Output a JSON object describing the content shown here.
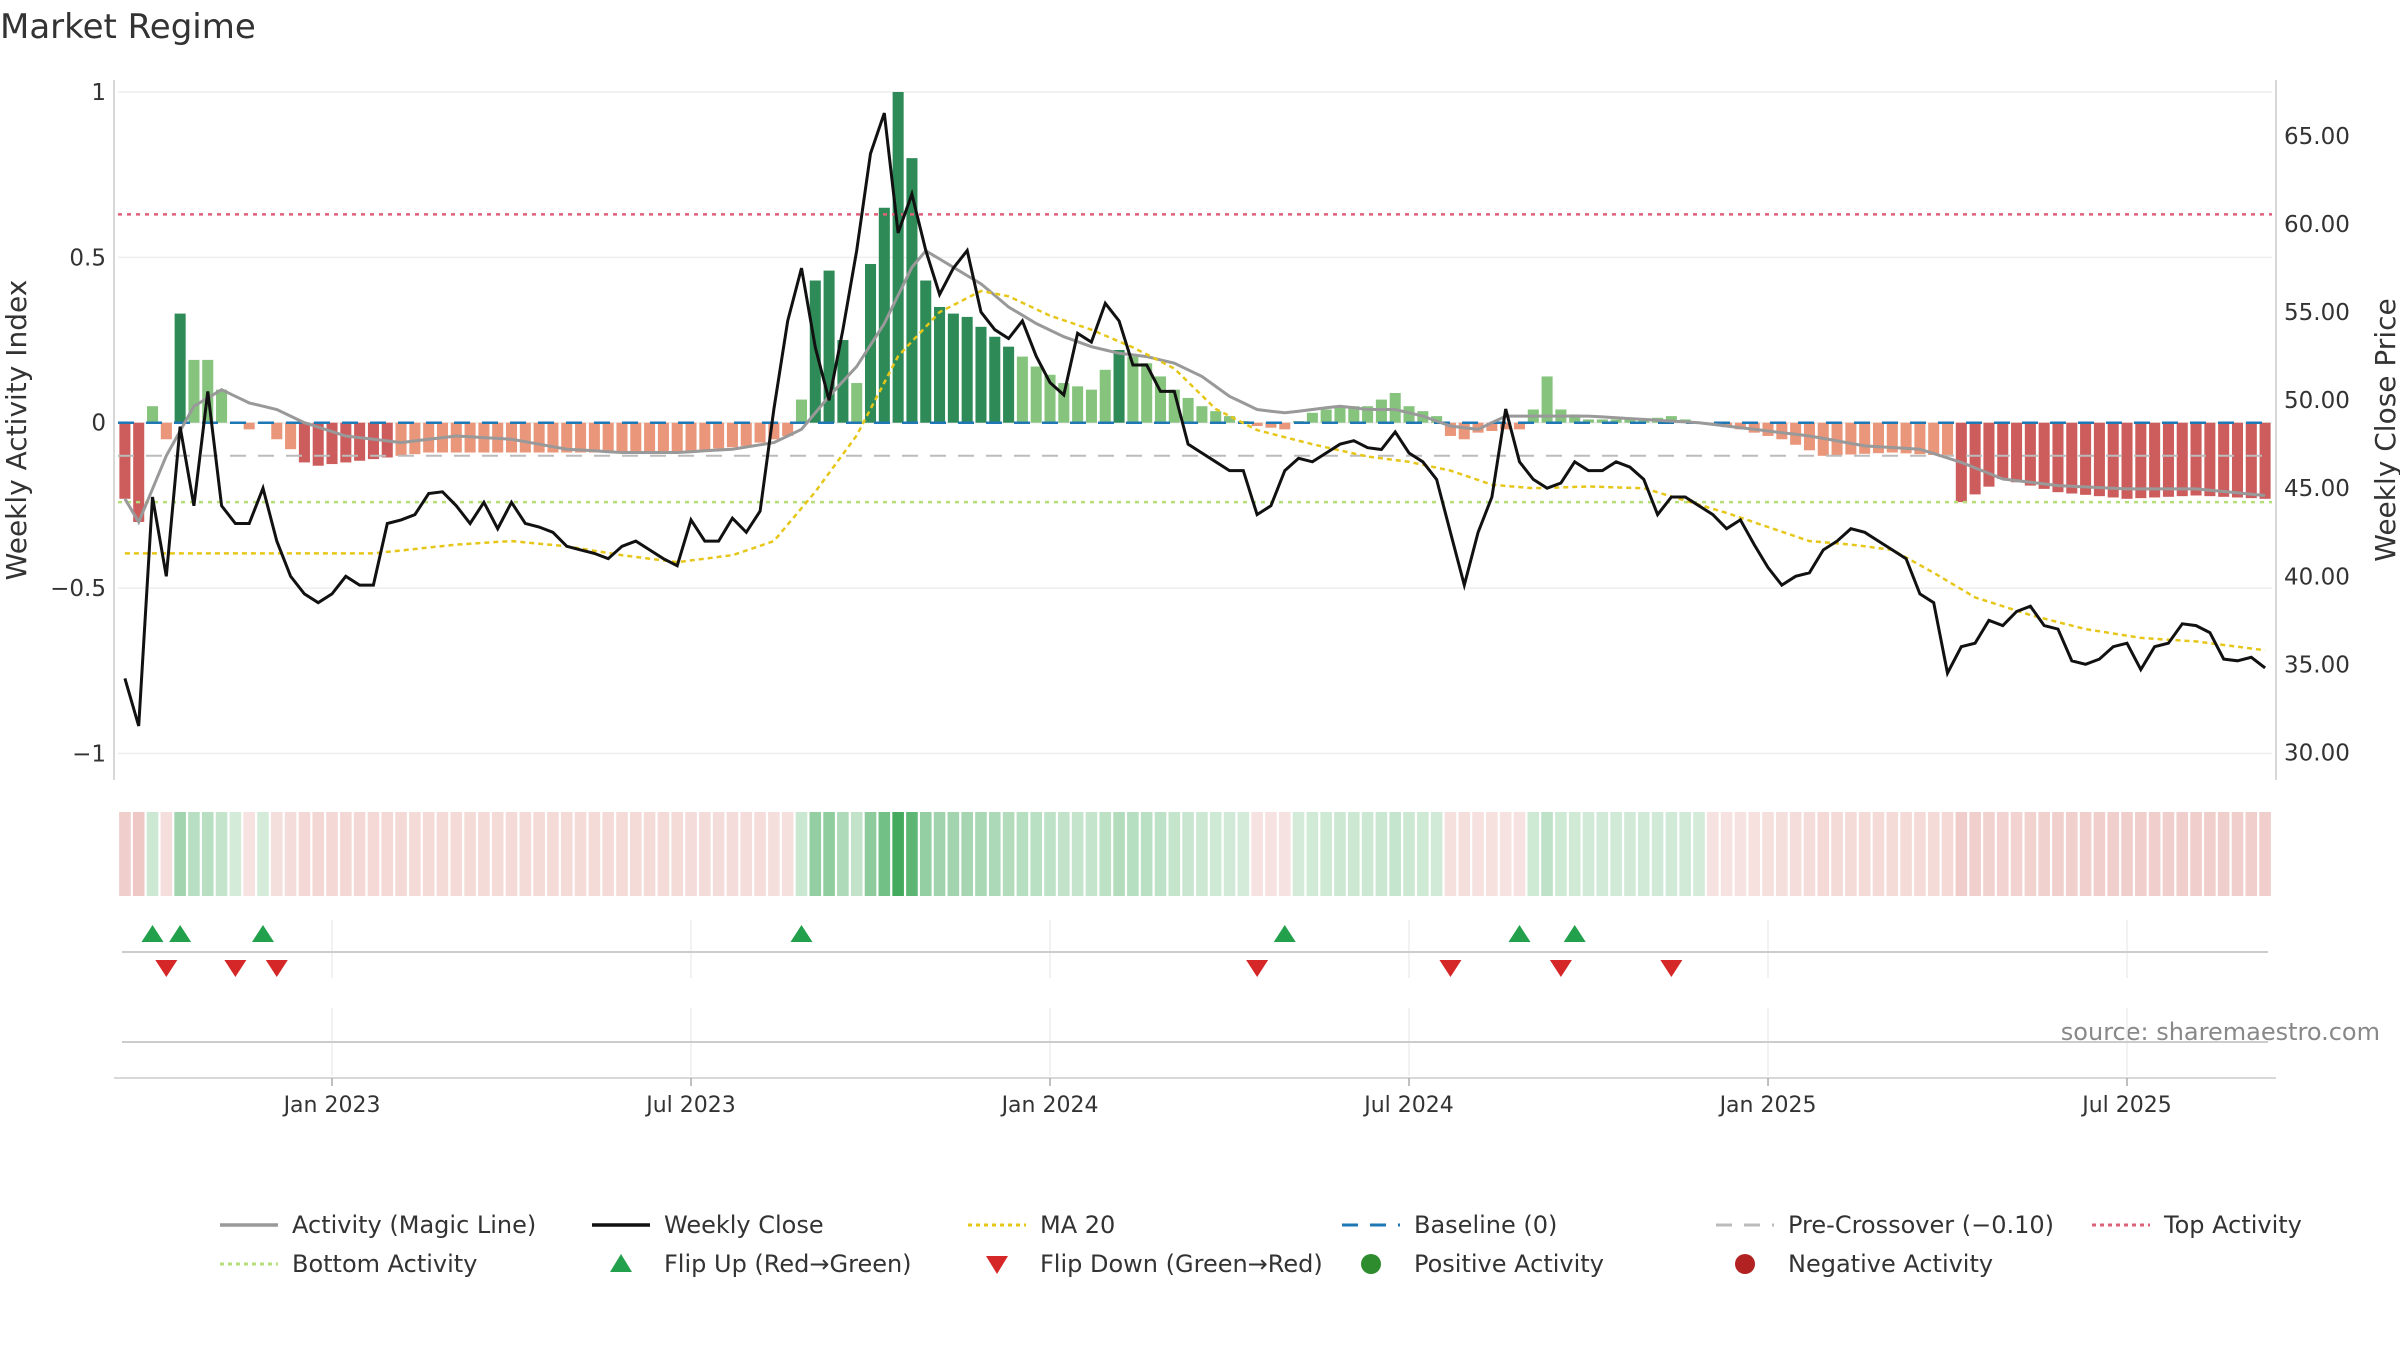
{
  "chart_data": {
    "type": "bar",
    "title": "Market Regime",
    "source": "source: sharemaestro.com",
    "ylabel_left": "Weekly Activity Index",
    "ylabel_right": "Weekly Close Price",
    "y_left_range": [
      -1.05,
      1.0
    ],
    "y_right_range": [
      29,
      67.5
    ],
    "y_left_ticks": [
      {
        "v": 1,
        "label": "1"
      },
      {
        "v": 0.5,
        "label": "0.5"
      },
      {
        "v": 0,
        "label": "0"
      },
      {
        "v": -0.5,
        "label": "−0.5"
      },
      {
        "v": -1,
        "label": "−1"
      }
    ],
    "y_right_ticks": [
      {
        "v": 65,
        "label": "65.00"
      },
      {
        "v": 60,
        "label": "60.00"
      },
      {
        "v": 55,
        "label": "55.00"
      },
      {
        "v": 50,
        "label": "50.00"
      },
      {
        "v": 45,
        "label": "45.00"
      },
      {
        "v": 40,
        "label": "40.00"
      },
      {
        "v": 35,
        "label": "35.00"
      },
      {
        "v": 30,
        "label": "30.00"
      }
    ],
    "x_range_weeks": [
      0,
      155
    ],
    "x_ticks": [
      {
        "week": 15,
        "label": "Jan 2023"
      },
      {
        "week": 41,
        "label": "Jul 2023"
      },
      {
        "week": 67,
        "label": "Jan 2024"
      },
      {
        "week": 93,
        "label": "Jul 2024"
      },
      {
        "week": 119,
        "label": "Jan 2025"
      },
      {
        "week": 145,
        "label": "Jul 2025"
      }
    ],
    "levels": {
      "top_activity": 0.63,
      "bottom_activity": -0.24,
      "pre_crossover": -0.1,
      "baseline": 0
    },
    "activity_control_points": [
      [
        0,
        -0.23
      ],
      [
        1,
        -0.3
      ],
      [
        2,
        0.05
      ],
      [
        3,
        -0.05
      ],
      [
        4,
        0.33
      ],
      [
        5,
        0.19
      ],
      [
        6,
        0.19
      ],
      [
        7,
        0.1
      ],
      [
        8,
        0.0
      ],
      [
        9,
        -0.02
      ],
      [
        10,
        0.0
      ],
      [
        11,
        -0.05
      ],
      [
        12,
        -0.08
      ],
      [
        13,
        -0.12
      ],
      [
        14,
        -0.13
      ],
      [
        18,
        -0.11
      ],
      [
        22,
        -0.09
      ],
      [
        28,
        -0.09
      ],
      [
        34,
        -0.09
      ],
      [
        40,
        -0.09
      ],
      [
        45,
        -0.07
      ],
      [
        48,
        -0.04
      ],
      [
        49,
        0.07
      ],
      [
        50,
        0.43
      ],
      [
        51,
        0.46
      ],
      [
        52,
        0.25
      ],
      [
        53,
        0.12
      ],
      [
        54,
        0.48
      ],
      [
        55,
        0.65
      ],
      [
        56,
        1.0
      ],
      [
        57,
        0.8
      ],
      [
        58,
        0.43
      ],
      [
        59,
        0.35
      ],
      [
        60,
        0.33
      ],
      [
        61,
        0.32
      ],
      [
        64,
        0.23
      ],
      [
        66,
        0.17
      ],
      [
        68,
        0.12
      ],
      [
        70,
        0.1
      ],
      [
        72,
        0.22
      ],
      [
        74,
        0.18
      ],
      [
        76,
        0.1
      ],
      [
        78,
        0.05
      ],
      [
        80,
        0.02
      ],
      [
        82,
        -0.01
      ],
      [
        84,
        -0.02
      ],
      [
        86,
        0.03
      ],
      [
        88,
        0.05
      ],
      [
        90,
        0.05
      ],
      [
        92,
        0.09
      ],
      [
        93,
        0.05
      ],
      [
        95,
        0.02
      ],
      [
        96,
        -0.04
      ],
      [
        97,
        -0.05
      ],
      [
        98,
        -0.03
      ],
      [
        100,
        -0.02
      ],
      [
        101,
        -0.02
      ],
      [
        102,
        0.04
      ],
      [
        103,
        0.14
      ],
      [
        104,
        0.04
      ],
      [
        106,
        0.01
      ],
      [
        110,
        0.01
      ],
      [
        112,
        0.02
      ],
      [
        114,
        0.0
      ],
      [
        117,
        -0.02
      ],
      [
        120,
        -0.05
      ],
      [
        123,
        -0.1
      ],
      [
        128,
        -0.09
      ],
      [
        132,
        -0.1
      ],
      [
        133,
        -0.24
      ],
      [
        136,
        -0.17
      ],
      [
        140,
        -0.21
      ],
      [
        145,
        -0.23
      ],
      [
        150,
        -0.22
      ],
      [
        155,
        -0.23
      ]
    ],
    "close_control_points": [
      [
        0,
        34.2
      ],
      [
        1,
        31.5
      ],
      [
        2,
        44.5
      ],
      [
        3,
        40
      ],
      [
        4,
        48.5
      ],
      [
        5,
        44
      ],
      [
        6,
        50.5
      ],
      [
        7,
        44
      ],
      [
        8,
        43
      ],
      [
        9,
        43
      ],
      [
        10,
        45
      ],
      [
        11,
        42
      ],
      [
        12,
        40
      ],
      [
        13,
        39
      ],
      [
        14,
        38.5
      ],
      [
        15,
        39
      ],
      [
        16,
        40
      ],
      [
        17,
        39.5
      ],
      [
        18,
        39.5
      ],
      [
        19,
        43
      ],
      [
        20,
        43.2
      ],
      [
        21,
        43.5
      ],
      [
        22,
        44.7
      ],
      [
        23,
        44.8
      ],
      [
        24,
        44
      ],
      [
        25,
        43
      ],
      [
        26,
        44.2
      ],
      [
        27,
        42.7
      ],
      [
        28,
        44.2
      ],
      [
        29,
        43
      ],
      [
        30,
        42.8
      ],
      [
        31,
        42.5
      ],
      [
        32,
        41.7
      ],
      [
        33,
        41.5
      ],
      [
        34,
        41.3
      ],
      [
        35,
        41
      ],
      [
        36,
        41.7
      ],
      [
        37,
        42
      ],
      [
        38,
        41.5
      ],
      [
        39,
        41
      ],
      [
        40,
        40.6
      ],
      [
        41,
        43.2
      ],
      [
        42,
        42
      ],
      [
        43,
        42
      ],
      [
        44,
        43.3
      ],
      [
        45,
        42.5
      ],
      [
        46,
        43.7
      ],
      [
        47,
        49.5
      ],
      [
        48,
        54.5
      ],
      [
        49,
        57.5
      ],
      [
        50,
        53
      ],
      [
        51,
        50
      ],
      [
        52,
        54
      ],
      [
        53,
        58.5
      ],
      [
        54,
        64
      ],
      [
        55,
        66.3
      ],
      [
        56,
        59.5
      ],
      [
        57,
        61.7
      ],
      [
        58,
        58.5
      ],
      [
        59,
        56
      ],
      [
        60,
        57.5
      ],
      [
        61,
        58.5
      ],
      [
        62,
        55
      ],
      [
        63,
        54
      ],
      [
        64,
        53.5
      ],
      [
        65,
        54.5
      ],
      [
        66,
        52.5
      ],
      [
        67,
        51
      ],
      [
        68,
        50.3
      ],
      [
        69,
        53.8
      ],
      [
        70,
        53.3
      ],
      [
        71,
        55.5
      ],
      [
        72,
        54.5
      ],
      [
        73,
        52
      ],
      [
        74,
        52
      ],
      [
        75,
        50.5
      ],
      [
        76,
        50.5
      ],
      [
        77,
        47.5
      ],
      [
        78,
        47
      ],
      [
        79,
        46.5
      ],
      [
        80,
        46
      ],
      [
        81,
        46
      ],
      [
        82,
        43.5
      ],
      [
        83,
        44
      ],
      [
        84,
        46
      ],
      [
        85,
        46.7
      ],
      [
        86,
        46.5
      ],
      [
        87,
        47
      ],
      [
        88,
        47.5
      ],
      [
        89,
        47.7
      ],
      [
        90,
        47.3
      ],
      [
        91,
        47.2
      ],
      [
        92,
        48.2
      ],
      [
        93,
        47
      ],
      [
        94,
        46.5
      ],
      [
        95,
        45.5
      ],
      [
        96,
        42.5
      ],
      [
        97,
        39.5
      ],
      [
        98,
        42.5
      ],
      [
        99,
        44.5
      ],
      [
        100,
        49.5
      ],
      [
        101,
        46.5
      ],
      [
        102,
        45.5
      ],
      [
        103,
        45
      ],
      [
        104,
        45.3
      ],
      [
        105,
        46.5
      ],
      [
        106,
        46
      ],
      [
        107,
        46
      ],
      [
        108,
        46.5
      ],
      [
        109,
        46.2
      ],
      [
        110,
        45.5
      ],
      [
        111,
        43.5
      ],
      [
        112,
        44.5
      ],
      [
        113,
        44.5
      ],
      [
        114,
        44
      ],
      [
        115,
        43.5
      ],
      [
        116,
        42.7
      ],
      [
        117,
        43.2
      ],
      [
        118,
        41.8
      ],
      [
        119,
        40.5
      ],
      [
        120,
        39.5
      ],
      [
        121,
        40
      ],
      [
        122,
        40.2
      ],
      [
        123,
        41.5
      ],
      [
        124,
        42
      ],
      [
        125,
        42.7
      ],
      [
        126,
        42.5
      ],
      [
        127,
        42
      ],
      [
        128,
        41.5
      ],
      [
        129,
        41
      ],
      [
        130,
        39
      ],
      [
        131,
        38.5
      ],
      [
        132,
        34.5
      ],
      [
        133,
        36
      ],
      [
        134,
        36.2
      ],
      [
        135,
        37.5
      ],
      [
        136,
        37.2
      ],
      [
        137,
        38
      ],
      [
        138,
        38.3
      ],
      [
        139,
        37.2
      ],
      [
        140,
        37
      ],
      [
        141,
        35.2
      ],
      [
        142,
        35
      ],
      [
        143,
        35.3
      ],
      [
        144,
        36
      ],
      [
        145,
        36.2
      ],
      [
        146,
        34.7
      ],
      [
        147,
        36
      ],
      [
        148,
        36.2
      ],
      [
        149,
        37.3
      ],
      [
        150,
        37.2
      ],
      [
        151,
        36.8
      ],
      [
        152,
        35.3
      ],
      [
        153,
        35.2
      ],
      [
        154,
        35.4
      ],
      [
        155,
        34.8
      ]
    ],
    "ma20_control_points": [
      [
        0,
        41.3
      ],
      [
        8,
        41.3
      ],
      [
        18,
        41.3
      ],
      [
        24,
        41.8
      ],
      [
        28,
        42
      ],
      [
        32,
        41.7
      ],
      [
        36,
        41.2
      ],
      [
        40,
        40.8
      ],
      [
        44,
        41.2
      ],
      [
        47,
        42
      ],
      [
        50,
        44.8
      ],
      [
        53,
        48
      ],
      [
        56,
        52.5
      ],
      [
        59,
        55
      ],
      [
        62,
        56.2
      ],
      [
        64,
        55.9
      ],
      [
        67,
        54.8
      ],
      [
        70,
        54
      ],
      [
        73,
        53
      ],
      [
        76,
        51.8
      ],
      [
        79,
        49.5
      ],
      [
        82,
        48.3
      ],
      [
        86,
        47.5
      ],
      [
        90,
        46.8
      ],
      [
        93,
        46.5
      ],
      [
        96,
        46
      ],
      [
        99,
        45.2
      ],
      [
        102,
        45
      ],
      [
        106,
        45.1
      ],
      [
        110,
        45
      ],
      [
        113,
        44.3
      ],
      [
        116,
        43.6
      ],
      [
        119,
        42.8
      ],
      [
        122,
        42
      ],
      [
        125,
        41.8
      ],
      [
        128,
        41.5
      ],
      [
        131,
        40.2
      ],
      [
        134,
        38.8
      ],
      [
        138,
        37.8
      ],
      [
        142,
        37
      ],
      [
        146,
        36.5
      ],
      [
        150,
        36.3
      ],
      [
        155,
        35.8
      ]
    ],
    "magic_control_points": [
      [
        0,
        -0.23
      ],
      [
        1,
        -0.3
      ],
      [
        3,
        -0.1
      ],
      [
        5,
        0.05
      ],
      [
        7,
        0.1
      ],
      [
        9,
        0.06
      ],
      [
        11,
        0.04
      ],
      [
        13,
        0.0
      ],
      [
        16,
        -0.04
      ],
      [
        20,
        -0.06
      ],
      [
        24,
        -0.04
      ],
      [
        28,
        -0.05
      ],
      [
        32,
        -0.08
      ],
      [
        36,
        -0.09
      ],
      [
        40,
        -0.09
      ],
      [
        44,
        -0.08
      ],
      [
        47,
        -0.06
      ],
      [
        49,
        -0.02
      ],
      [
        51,
        0.08
      ],
      [
        53,
        0.17
      ],
      [
        55,
        0.3
      ],
      [
        57,
        0.47
      ],
      [
        58,
        0.52
      ],
      [
        60,
        0.47
      ],
      [
        62,
        0.42
      ],
      [
        64,
        0.35
      ],
      [
        66,
        0.3
      ],
      [
        68,
        0.26
      ],
      [
        70,
        0.23
      ],
      [
        72,
        0.21
      ],
      [
        74,
        0.2
      ],
      [
        76,
        0.18
      ],
      [
        78,
        0.14
      ],
      [
        80,
        0.08
      ],
      [
        82,
        0.04
      ],
      [
        84,
        0.03
      ],
      [
        86,
        0.04
      ],
      [
        88,
        0.05
      ],
      [
        90,
        0.04
      ],
      [
        92,
        0.04
      ],
      [
        94,
        0.02
      ],
      [
        96,
        -0.01
      ],
      [
        98,
        -0.02
      ],
      [
        100,
        0.02
      ],
      [
        102,
        0.02
      ],
      [
        106,
        0.02
      ],
      [
        110,
        0.01
      ],
      [
        114,
        0.0
      ],
      [
        118,
        -0.02
      ],
      [
        122,
        -0.04
      ],
      [
        126,
        -0.07
      ],
      [
        130,
        -0.08
      ],
      [
        133,
        -0.12
      ],
      [
        136,
        -0.17
      ],
      [
        140,
        -0.19
      ],
      [
        145,
        -0.2
      ],
      [
        150,
        -0.2
      ],
      [
        155,
        -0.22
      ]
    ],
    "flip_up_weeks": [
      2,
      4,
      10,
      49,
      84,
      101,
      105
    ],
    "flip_down_weeks": [
      3,
      8,
      11,
      82,
      96,
      104,
      112
    ],
    "colors": {
      "strong_positive": "#2e8b57",
      "positive": "#86c47e",
      "strong_negative": "#cd5c5c",
      "negative": "#e9967a",
      "close": "#111111",
      "magic": "#999999",
      "ma20": "#e6c619",
      "baseline": "#1f77b4",
      "pre_crossover": "#bbbbbb",
      "top_activity": "#e0607a",
      "bottom_activity": "#b5dd7a",
      "flip_up": "#22a04b",
      "flip_down": "#d62728",
      "positive_dot": "#2e8b2e",
      "negative_dot": "#b22222",
      "regime_pos": "#3aa655",
      "regime_neg": "#d9827a"
    },
    "legend": [
      {
        "key": "magic",
        "label": "Activity (Magic Line)",
        "symbol": "line",
        "color": "#999999"
      },
      {
        "key": "close",
        "label": "Weekly Close",
        "symbol": "line",
        "color": "#111111"
      },
      {
        "key": "ma20",
        "label": "MA 20",
        "symbol": "dotted",
        "color": "#e6c619"
      },
      {
        "key": "baseline",
        "label": "Baseline (0)",
        "symbol": "dashed",
        "color": "#1f77b4"
      },
      {
        "key": "pre",
        "label": "Pre-Crossover (−0.10)",
        "symbol": "dashed",
        "color": "#bbbbbb"
      },
      {
        "key": "top",
        "label": "Top Activity",
        "symbol": "dotted",
        "color": "#e0607a"
      },
      {
        "key": "bottom",
        "label": "Bottom Activity",
        "symbol": "dotted",
        "color": "#b5dd7a"
      },
      {
        "key": "flipup",
        "label": "Flip Up (Red→Green)",
        "symbol": "tri-up",
        "color": "#22a04b"
      },
      {
        "key": "flipdown",
        "label": "Flip Down (Green→Red)",
        "symbol": "tri-down",
        "color": "#d62728"
      },
      {
        "key": "posact",
        "label": "Positive Activity",
        "symbol": "dot",
        "color": "#2e8b2e"
      },
      {
        "key": "negact",
        "label": "Negative Activity",
        "symbol": "dot",
        "color": "#b22222"
      }
    ]
  }
}
